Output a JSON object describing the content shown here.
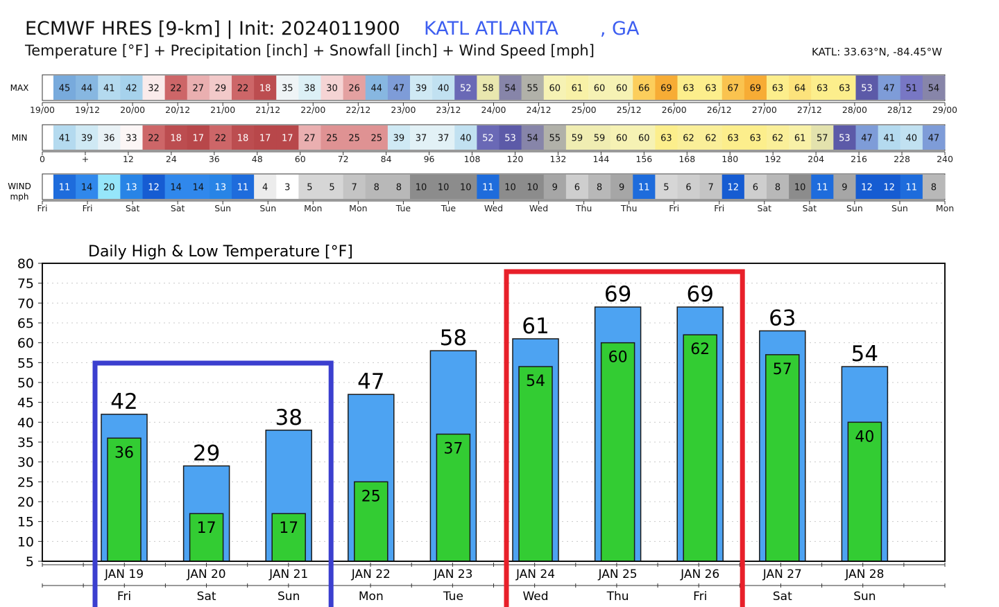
{
  "header": {
    "model": "ECMWF HRES [9-km] | Init: 2024011900",
    "location": "KATL ATLANTA       , GA",
    "subtitle": "Temperature [°F] + Precipitation [inch] + Snowfall [inch] + Wind Speed [mph]",
    "coords": "KATL: 33.63°N, -84.45°W"
  },
  "strips": {
    "max": {
      "label": "MAX",
      "values": [
        45,
        44,
        41,
        42,
        32,
        22,
        27,
        29,
        22,
        18,
        35,
        38,
        30,
        26,
        44,
        47,
        39,
        40,
        52,
        58,
        54,
        55,
        60,
        61,
        60,
        60,
        66,
        69,
        63,
        63,
        67,
        69,
        63,
        64,
        63,
        63,
        53,
        47,
        51,
        54
      ],
      "axis_labels": [
        "19/00",
        "19/12",
        "20/00",
        "20/12",
        "21/00",
        "21/12",
        "22/00",
        "22/12",
        "23/00",
        "23/12",
        "24/00",
        "24/12",
        "25/00",
        "25/12",
        "26/00",
        "26/12",
        "27/00",
        "27/12",
        "28/00",
        "28/12",
        "29/00"
      ]
    },
    "min": {
      "label": "MIN",
      "values": [
        41,
        39,
        36,
        33,
        22,
        18,
        17,
        22,
        18,
        17,
        17,
        27,
        25,
        25,
        25,
        39,
        37,
        37,
        40,
        52,
        53,
        54,
        55,
        59,
        59,
        60,
        60,
        63,
        62,
        62,
        63,
        63,
        62,
        61,
        57,
        53,
        47,
        41,
        40,
        47
      ],
      "axis_labels": [
        "0",
        "+",
        "12",
        "24",
        "36",
        "48",
        "60",
        "72",
        "84",
        "96",
        "108",
        "120",
        "132",
        "144",
        "156",
        "168",
        "180",
        "192",
        "204",
        "216",
        "228",
        "240"
      ]
    },
    "wind": {
      "label": "WIND",
      "unit_label": "mph",
      "values": [
        11,
        14,
        20,
        13,
        12,
        14,
        14,
        13,
        11,
        4,
        3,
        5,
        5,
        7,
        8,
        8,
        10,
        10,
        10,
        11,
        10,
        10,
        9,
        6,
        8,
        9,
        11,
        5,
        6,
        7,
        12,
        6,
        8,
        10,
        11,
        9,
        12,
        12,
        11,
        8
      ],
      "axis_labels": [
        "Fri",
        "Fri",
        "Sat",
        "Sat",
        "Sun",
        "Sun",
        "Mon",
        "Mon",
        "Tue",
        "Tue",
        "Wed",
        "Wed",
        "Thu",
        "Thu",
        "Fri",
        "Fri",
        "Sat",
        "Sat",
        "Sun",
        "Sun",
        "Mon"
      ]
    }
  },
  "chart_data": {
    "type": "bar",
    "title": "Daily High & Low Temperature [°F]",
    "categories": [
      "JAN 19",
      "JAN 20",
      "JAN 21",
      "JAN 22",
      "JAN 23",
      "JAN 24",
      "JAN 25",
      "JAN 26",
      "JAN 27",
      "JAN 28"
    ],
    "weekdays": [
      "Fri",
      "Sat",
      "Sun",
      "Mon",
      "Tue",
      "Wed",
      "Thu",
      "Fri",
      "Sat",
      "Sun"
    ],
    "series": [
      {
        "name": "High",
        "values": [
          42,
          29,
          38,
          47,
          58,
          61,
          69,
          69,
          63,
          54
        ],
        "color": "#4da3f2"
      },
      {
        "name": "Low",
        "values": [
          36,
          17,
          17,
          25,
          37,
          54,
          60,
          62,
          57,
          40
        ],
        "color": "#33cc33"
      }
    ],
    "ylim": [
      5,
      80
    ],
    "yticks": [
      5,
      10,
      15,
      20,
      25,
      30,
      35,
      40,
      45,
      50,
      55,
      60,
      65,
      70,
      75,
      80
    ],
    "grid": true,
    "highlights": [
      {
        "range": [
          "JAN 19",
          "JAN 21"
        ],
        "color": "#3b3fcf"
      },
      {
        "range": [
          "JAN 24",
          "JAN 26"
        ],
        "color": "#e8202a"
      }
    ]
  }
}
